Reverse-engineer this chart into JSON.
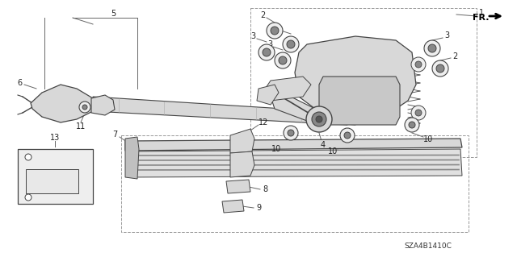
{
  "bg_color": "#ffffff",
  "part_code": "SZA4B1410C",
  "line_color": "#444444",
  "gray_fill": "#d8d8d8",
  "dark_gray": "#888888",
  "light_gray": "#eeeeee"
}
